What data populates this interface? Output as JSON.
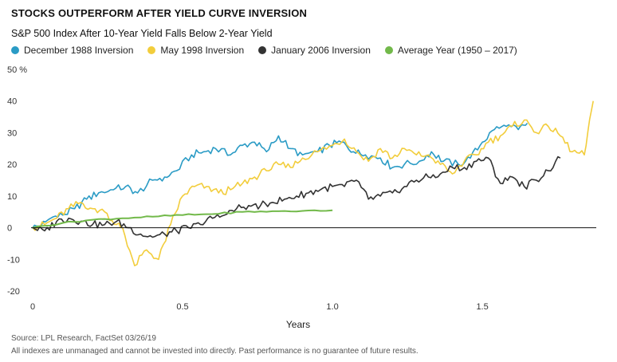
{
  "chart_data": {
    "type": "line",
    "title": "STOCKS OUTPERFORM AFTER YIELD CURVE INVERSION",
    "subtitle": "S&P 500 Index After 10-Year Yield Falls Below 2-Year Yield",
    "xlabel": "Years",
    "ylabel": "",
    "xlim": [
      0,
      1.88
    ],
    "ylim": [
      -20,
      50
    ],
    "x_ticks": [
      0,
      0.5,
      1.0,
      1.5
    ],
    "x_tick_labels": [
      "0",
      "0.5",
      "1.0",
      "1.5"
    ],
    "y_ticks": [
      50,
      40,
      30,
      20,
      10,
      0,
      -10,
      -20
    ],
    "y_tick_labels": [
      "50 %",
      "40",
      "30",
      "20",
      "10",
      "0",
      "-10",
      "-20"
    ],
    "grid": false,
    "legend_position": "top",
    "series": [
      {
        "name": "December 1988 Inversion",
        "color": "#2a9bc5",
        "x": [
          0,
          0.03,
          0.06,
          0.1,
          0.14,
          0.18,
          0.22,
          0.27,
          0.31,
          0.35,
          0.4,
          0.44,
          0.48,
          0.53,
          0.57,
          0.61,
          0.66,
          0.7,
          0.74,
          0.78,
          0.82,
          0.86,
          0.9,
          0.95,
          0.99,
          1.03,
          1.07,
          1.11,
          1.16,
          1.2,
          1.24,
          1.29,
          1.33,
          1.37,
          1.42,
          1.46,
          1.5,
          1.54,
          1.58,
          1.62,
          1.65
        ],
        "values": [
          0,
          1,
          3,
          4,
          6,
          9,
          11,
          12,
          13,
          11,
          15,
          16,
          18,
          23,
          24,
          25,
          23,
          26,
          27,
          24,
          29,
          25,
          23,
          24,
          26,
          27,
          24,
          23,
          22,
          19,
          20,
          21,
          24,
          21,
          20,
          22,
          27,
          31,
          32,
          31,
          33
        ]
      },
      {
        "name": "May 1998 Inversion",
        "color": "#f2cd3c",
        "x": [
          0,
          0.04,
          0.08,
          0.12,
          0.16,
          0.2,
          0.24,
          0.28,
          0.3,
          0.34,
          0.38,
          0.42,
          0.46,
          0.5,
          0.54,
          0.58,
          0.62,
          0.66,
          0.7,
          0.74,
          0.78,
          0.82,
          0.86,
          0.9,
          0.95,
          1.0,
          1.04,
          1.08,
          1.12,
          1.16,
          1.2,
          1.24,
          1.28,
          1.32,
          1.36,
          1.4,
          1.44,
          1.48,
          1.52,
          1.56,
          1.6,
          1.64,
          1.68,
          1.72,
          1.76,
          1.8,
          1.84,
          1.87
        ],
        "values": [
          0,
          1,
          3,
          6,
          8,
          6,
          5,
          1,
          0,
          -12,
          -7,
          -10,
          1,
          10,
          13,
          13,
          11,
          12,
          14,
          16,
          18,
          20,
          19,
          22,
          24,
          26,
          28,
          24,
          21,
          25,
          22,
          25,
          23,
          23,
          20,
          17,
          21,
          23,
          27,
          29,
          32,
          34,
          30,
          32,
          29,
          24,
          23,
          40
        ]
      },
      {
        "name": "January 2006 Inversion",
        "color": "#333333",
        "x": [
          0,
          0.04,
          0.08,
          0.12,
          0.16,
          0.2,
          0.24,
          0.28,
          0.32,
          0.36,
          0.4,
          0.44,
          0.48,
          0.52,
          0.56,
          0.6,
          0.64,
          0.68,
          0.72,
          0.76,
          0.8,
          0.84,
          0.88,
          0.92,
          0.96,
          1.0,
          1.04,
          1.08,
          1.12,
          1.16,
          1.2,
          1.24,
          1.28,
          1.32,
          1.36,
          1.4,
          1.44,
          1.48,
          1.52,
          1.56,
          1.6,
          1.64,
          1.68,
          1.72,
          1.76
        ],
        "values": [
          0,
          -1,
          2,
          3,
          2,
          1,
          1,
          2,
          0,
          -2,
          -3,
          -2,
          -1,
          0,
          1,
          3,
          4,
          6,
          7,
          7,
          8,
          9,
          10,
          11,
          12,
          13,
          13,
          15,
          9,
          10,
          11,
          13,
          15,
          16,
          17,
          19,
          19,
          21,
          22,
          14,
          16,
          13,
          15,
          18,
          22
        ]
      },
      {
        "name": "Average Year (1950 – 2017)",
        "color": "#72b94a",
        "x": [
          0,
          0.1,
          0.2,
          0.3,
          0.4,
          0.5,
          0.6,
          0.7,
          0.8,
          0.9,
          1.0
        ],
        "values": [
          0,
          1.5,
          2.5,
          3,
          3.5,
          4,
          4.3,
          5,
          5.2,
          5.3,
          5.5
        ]
      }
    ]
  },
  "footer": {
    "source": "Source: LPL Research, FactSet 03/26/19",
    "disclaimer": "All indexes are unmanaged and cannot be invested into directly. Past performance is no guarantee of future results."
  }
}
